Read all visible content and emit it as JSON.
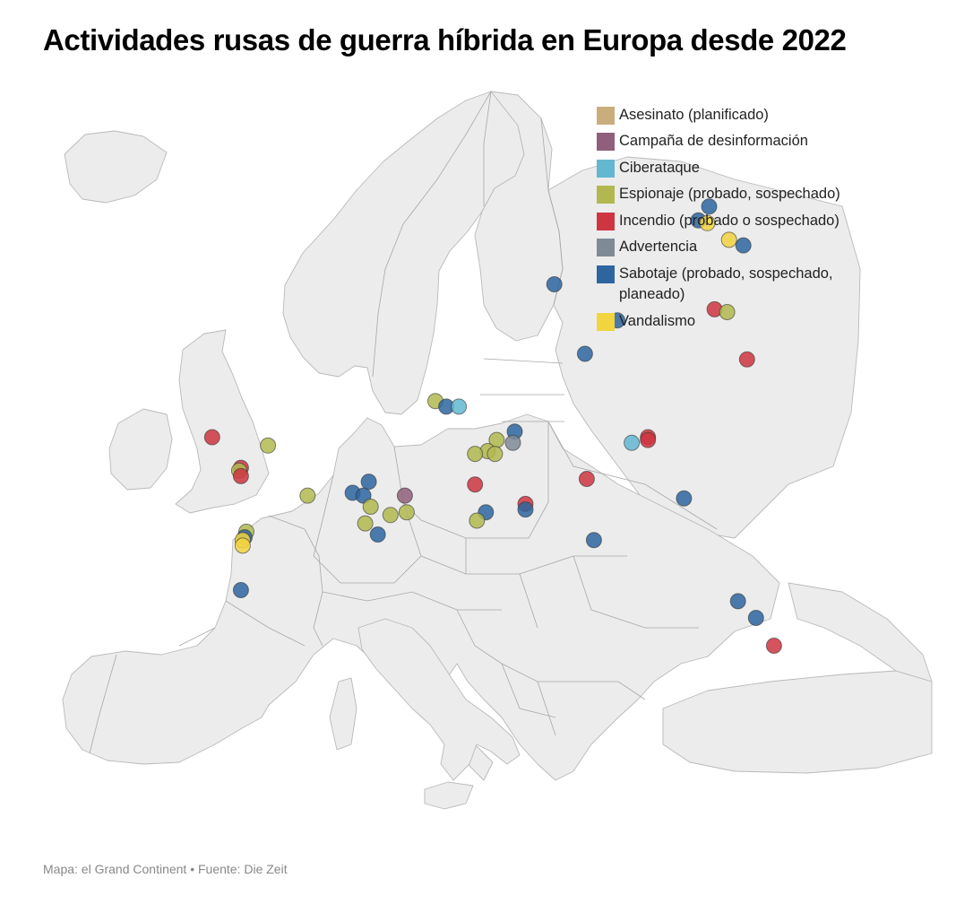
{
  "title": "Actividades rusas de guerra híbrida en Europa desde 2022",
  "source": "Mapa: el Grand Continent • Fuente: Die Zeit",
  "categories": [
    {
      "key": "asesinato",
      "label": "Asesinato (planificado)",
      "color": "#c9ad7d"
    },
    {
      "key": "desinformacion",
      "label": "Campaña de desinformación",
      "color": "#8f5f7b"
    },
    {
      "key": "ciberataque",
      "label": "Ciberataque",
      "color": "#63b7d1"
    },
    {
      "key": "espionaje",
      "label": "Espionaje (probado, sospechado)",
      "color": "#b2b84f"
    },
    {
      "key": "incendio",
      "label": "Incendio (probado o sospechado)",
      "color": "#ce3541"
    },
    {
      "key": "advertencia",
      "label": "Advertencia",
      "color": "#7f8a96"
    },
    {
      "key": "sabotaje",
      "label": "Sabotaje (probado, sospechado, planeado)",
      "color": "#2e65a0"
    },
    {
      "key": "vandalismo",
      "label": "Vandalismo",
      "color": "#f2d43f"
    }
  ],
  "events": [
    {
      "lon": 25.4,
      "lat": 65.1,
      "category": "sabotaje"
    },
    {
      "lon": 24.8,
      "lat": 64.6,
      "category": "sabotaje"
    },
    {
      "lon": 25.3,
      "lat": 64.5,
      "category": "vandalismo"
    },
    {
      "lon": 26.5,
      "lat": 63.9,
      "category": "vandalismo"
    },
    {
      "lon": 27.3,
      "lat": 63.7,
      "category": "sabotaje"
    },
    {
      "lon": 16.8,
      "lat": 62.3,
      "category": "sabotaje"
    },
    {
      "lon": 20.3,
      "lat": 61.0,
      "category": "sabotaje"
    },
    {
      "lon": 25.7,
      "lat": 61.4,
      "category": "incendio"
    },
    {
      "lon": 26.4,
      "lat": 61.3,
      "category": "espionaje"
    },
    {
      "lon": 18.5,
      "lat": 59.8,
      "category": "sabotaje"
    },
    {
      "lon": 27.5,
      "lat": 59.6,
      "category": "incendio"
    },
    {
      "lon": 10.2,
      "lat": 58.1,
      "category": "espionaje"
    },
    {
      "lon": 10.8,
      "lat": 57.9,
      "category": "sabotaje"
    },
    {
      "lon": 11.5,
      "lat": 57.9,
      "category": "ciberataque"
    },
    {
      "lon": 14.6,
      "lat": 57.0,
      "category": "sabotaje"
    },
    {
      "lon": 13.6,
      "lat": 56.7,
      "category": "espionaje"
    },
    {
      "lon": 14.5,
      "lat": 56.6,
      "category": "advertencia"
    },
    {
      "lon": 13.1,
      "lat": 56.3,
      "category": "espionaje"
    },
    {
      "lon": 13.5,
      "lat": 56.2,
      "category": "espionaje"
    },
    {
      "lon": 12.4,
      "lat": 56.2,
      "category": "espionaje"
    },
    {
      "lon": 21.1,
      "lat": 56.6,
      "category": "ciberataque"
    },
    {
      "lon": 22.0,
      "lat": 56.8,
      "category": "incendio"
    },
    {
      "lon": 22.0,
      "lat": 56.7,
      "category": "incendio"
    },
    {
      "lon": -2.2,
      "lat": 56.8,
      "category": "incendio"
    },
    {
      "lon": 0.9,
      "lat": 56.5,
      "category": "espionaje"
    },
    {
      "lon": -0.6,
      "lat": 55.7,
      "category": "incendio"
    },
    {
      "lon": -0.7,
      "lat": 55.6,
      "category": "espionaje"
    },
    {
      "lon": -0.6,
      "lat": 55.4,
      "category": "incendio"
    },
    {
      "lon": 3.1,
      "lat": 54.7,
      "category": "espionaje"
    },
    {
      "lon": 5.6,
      "lat": 54.8,
      "category": "sabotaje"
    },
    {
      "lon": 6.5,
      "lat": 55.2,
      "category": "sabotaje"
    },
    {
      "lon": 6.2,
      "lat": 54.7,
      "category": "sabotaje"
    },
    {
      "lon": 6.6,
      "lat": 54.3,
      "category": "espionaje"
    },
    {
      "lon": 8.5,
      "lat": 54.7,
      "category": "desinformacion"
    },
    {
      "lon": 8.6,
      "lat": 54.1,
      "category": "espionaje"
    },
    {
      "lon": 7.7,
      "lat": 54.0,
      "category": "espionaje"
    },
    {
      "lon": 6.3,
      "lat": 53.7,
      "category": "espionaje"
    },
    {
      "lon": 12.4,
      "lat": 55.1,
      "category": "incendio"
    },
    {
      "lon": 13.0,
      "lat": 54.1,
      "category": "sabotaje"
    },
    {
      "lon": 12.5,
      "lat": 53.8,
      "category": "espionaje"
    },
    {
      "lon": 15.2,
      "lat": 54.4,
      "category": "incendio"
    },
    {
      "lon": 15.2,
      "lat": 54.2,
      "category": "sabotaje"
    },
    {
      "lon": 7.0,
      "lat": 53.3,
      "category": "sabotaje"
    },
    {
      "lon": 18.6,
      "lat": 55.3,
      "category": "incendio"
    },
    {
      "lon": 19.0,
      "lat": 53.1,
      "category": "sabotaje"
    },
    {
      "lon": 24.0,
      "lat": 54.6,
      "category": "sabotaje"
    },
    {
      "lon": -0.3,
      "lat": 53.4,
      "category": "espionaje"
    },
    {
      "lon": -0.4,
      "lat": 53.2,
      "category": "sabotaje"
    },
    {
      "lon": -0.5,
      "lat": 53.1,
      "category": "vandalismo"
    },
    {
      "lon": -0.5,
      "lat": 52.9,
      "category": "vandalismo"
    },
    {
      "lon": -0.6,
      "lat": 51.3,
      "category": "sabotaje"
    },
    {
      "lon": 27.0,
      "lat": 50.9,
      "category": "sabotaje"
    },
    {
      "lon": 28.0,
      "lat": 50.3,
      "category": "sabotaje"
    },
    {
      "lon": 29.0,
      "lat": 49.3,
      "category": "incendio"
    }
  ]
}
